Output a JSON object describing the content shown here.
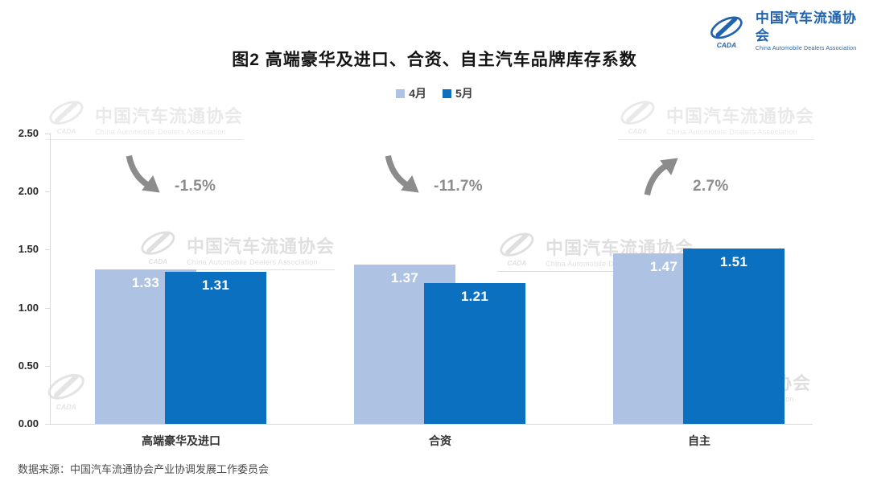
{
  "page": {
    "title": "图2  高端豪华及进口、合资、自主汽车品牌库存系数"
  },
  "brand": {
    "name_cn": "中国汽车流通协会",
    "name_en": "China Automobile Dealers Association",
    "logo_text": "CADA",
    "color": "#2263AE"
  },
  "watermark": {
    "text_cn": "中国汽车流通协会",
    "text_en": "China Automobile Dealers Association",
    "logo_text": "CADA"
  },
  "source": "数据来源：中国汽车流通协会产业协调发展工作委员会",
  "chart_data": {
    "type": "bar",
    "title": "图2 高端豪华及进口、合资、自主汽车品牌库存系数",
    "categories": [
      "高端豪华及进口",
      "合资",
      "自主"
    ],
    "series": [
      {
        "name": "4月",
        "color": "#AEC3E4",
        "values": [
          1.33,
          1.37,
          1.47
        ]
      },
      {
        "name": "5月",
        "color": "#0C70C0",
        "values": [
          1.31,
          1.21,
          1.51
        ]
      }
    ],
    "annotations": [
      {
        "label": "-1.5%",
        "direction": "down"
      },
      {
        "label": "-11.7%",
        "direction": "down"
      },
      {
        "label": "2.7%",
        "direction": "up"
      }
    ],
    "ylim": [
      0,
      2.5
    ],
    "yticks": [
      "0.00",
      "0.50",
      "1.00",
      "1.50",
      "2.00",
      "2.50"
    ],
    "grid": false,
    "legend_position": "top",
    "value_label_color": "#FFFFFF",
    "annotation_color": "#8C8C8C"
  }
}
